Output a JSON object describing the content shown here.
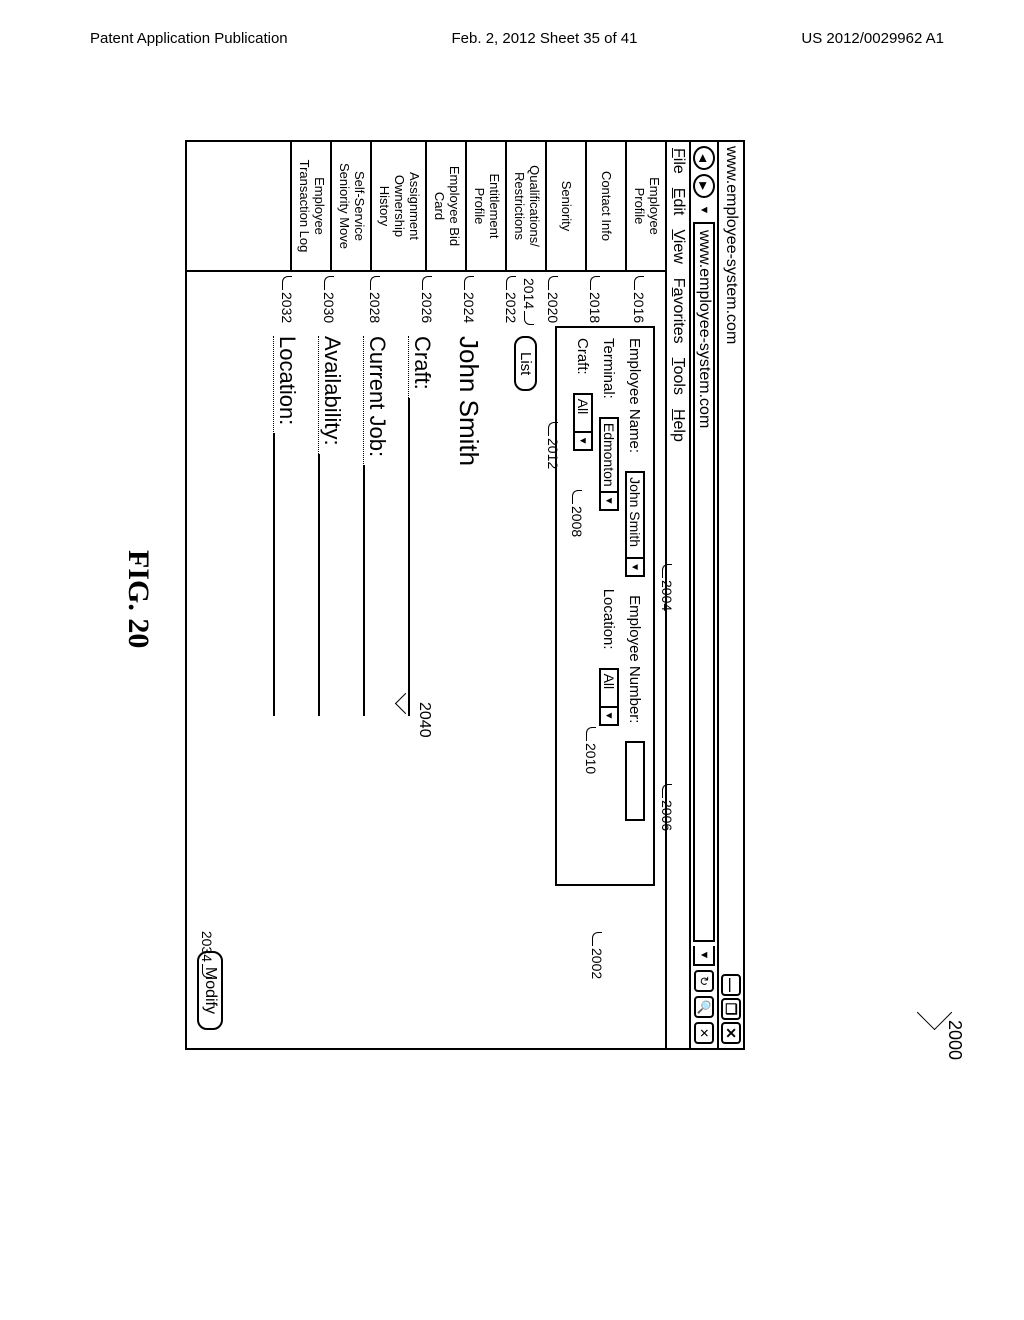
{
  "page_header": {
    "left": "Patent Application Publication",
    "center": "Feb. 2, 2012  Sheet 35 of 41",
    "right": "US 2012/0029962 A1"
  },
  "figure_caption": "FIG. 20",
  "window": {
    "title": "www.employee-system.com",
    "url": "www.employee-system.com",
    "menubar": [
      "File",
      "Edit",
      "View",
      "Favorites",
      "Tools",
      "Help"
    ]
  },
  "sidebar": [
    {
      "label": "Employee\nProfile"
    },
    {
      "label": "Contact Info"
    },
    {
      "label": "Seniority"
    },
    {
      "label": "Qualifications/\nRestrictions"
    },
    {
      "label": "Entitlement\nProfile"
    },
    {
      "label": "Employee Bid\nCard"
    },
    {
      "label": "Assignment\nOwnership\nHistory"
    },
    {
      "label": "Self-Service\nSeniority Move"
    },
    {
      "label": "Employee\nTransaction Log"
    }
  ],
  "filters": {
    "employee_name_label": "Employee Name:",
    "employee_name_value": "John Smith",
    "employee_number_label": "Employee Number:",
    "employee_number_value": "",
    "terminal_label": "Terminal:",
    "terminal_value": "Edmonton",
    "location_label": "Location:",
    "location_value": "All",
    "craft_label": "Craft:",
    "craft_value": "All",
    "list_button": "List"
  },
  "details": {
    "name": "John Smith",
    "craft_label": "Craft:",
    "current_job_label": "Current Job:",
    "availability_label": "Availability:",
    "location_label": "Location:",
    "modify_button": "Modify"
  },
  "refs": {
    "r2000": "2000",
    "r2002": "2002",
    "r2004": "2004",
    "r2006": "2006",
    "r2008": "2008",
    "r2010": "2010",
    "r2012": "2012",
    "r2014": "2014",
    "r2016": "2016",
    "r2018": "2018",
    "r2020": "2020",
    "r2022": "2022",
    "r2024": "2024",
    "r2026": "2026",
    "r2028": "2028",
    "r2030": "2030",
    "r2032": "2032",
    "r2034": "2034",
    "r2040": "2040"
  },
  "colors": {
    "line": "#000000",
    "background": "#ffffff"
  }
}
